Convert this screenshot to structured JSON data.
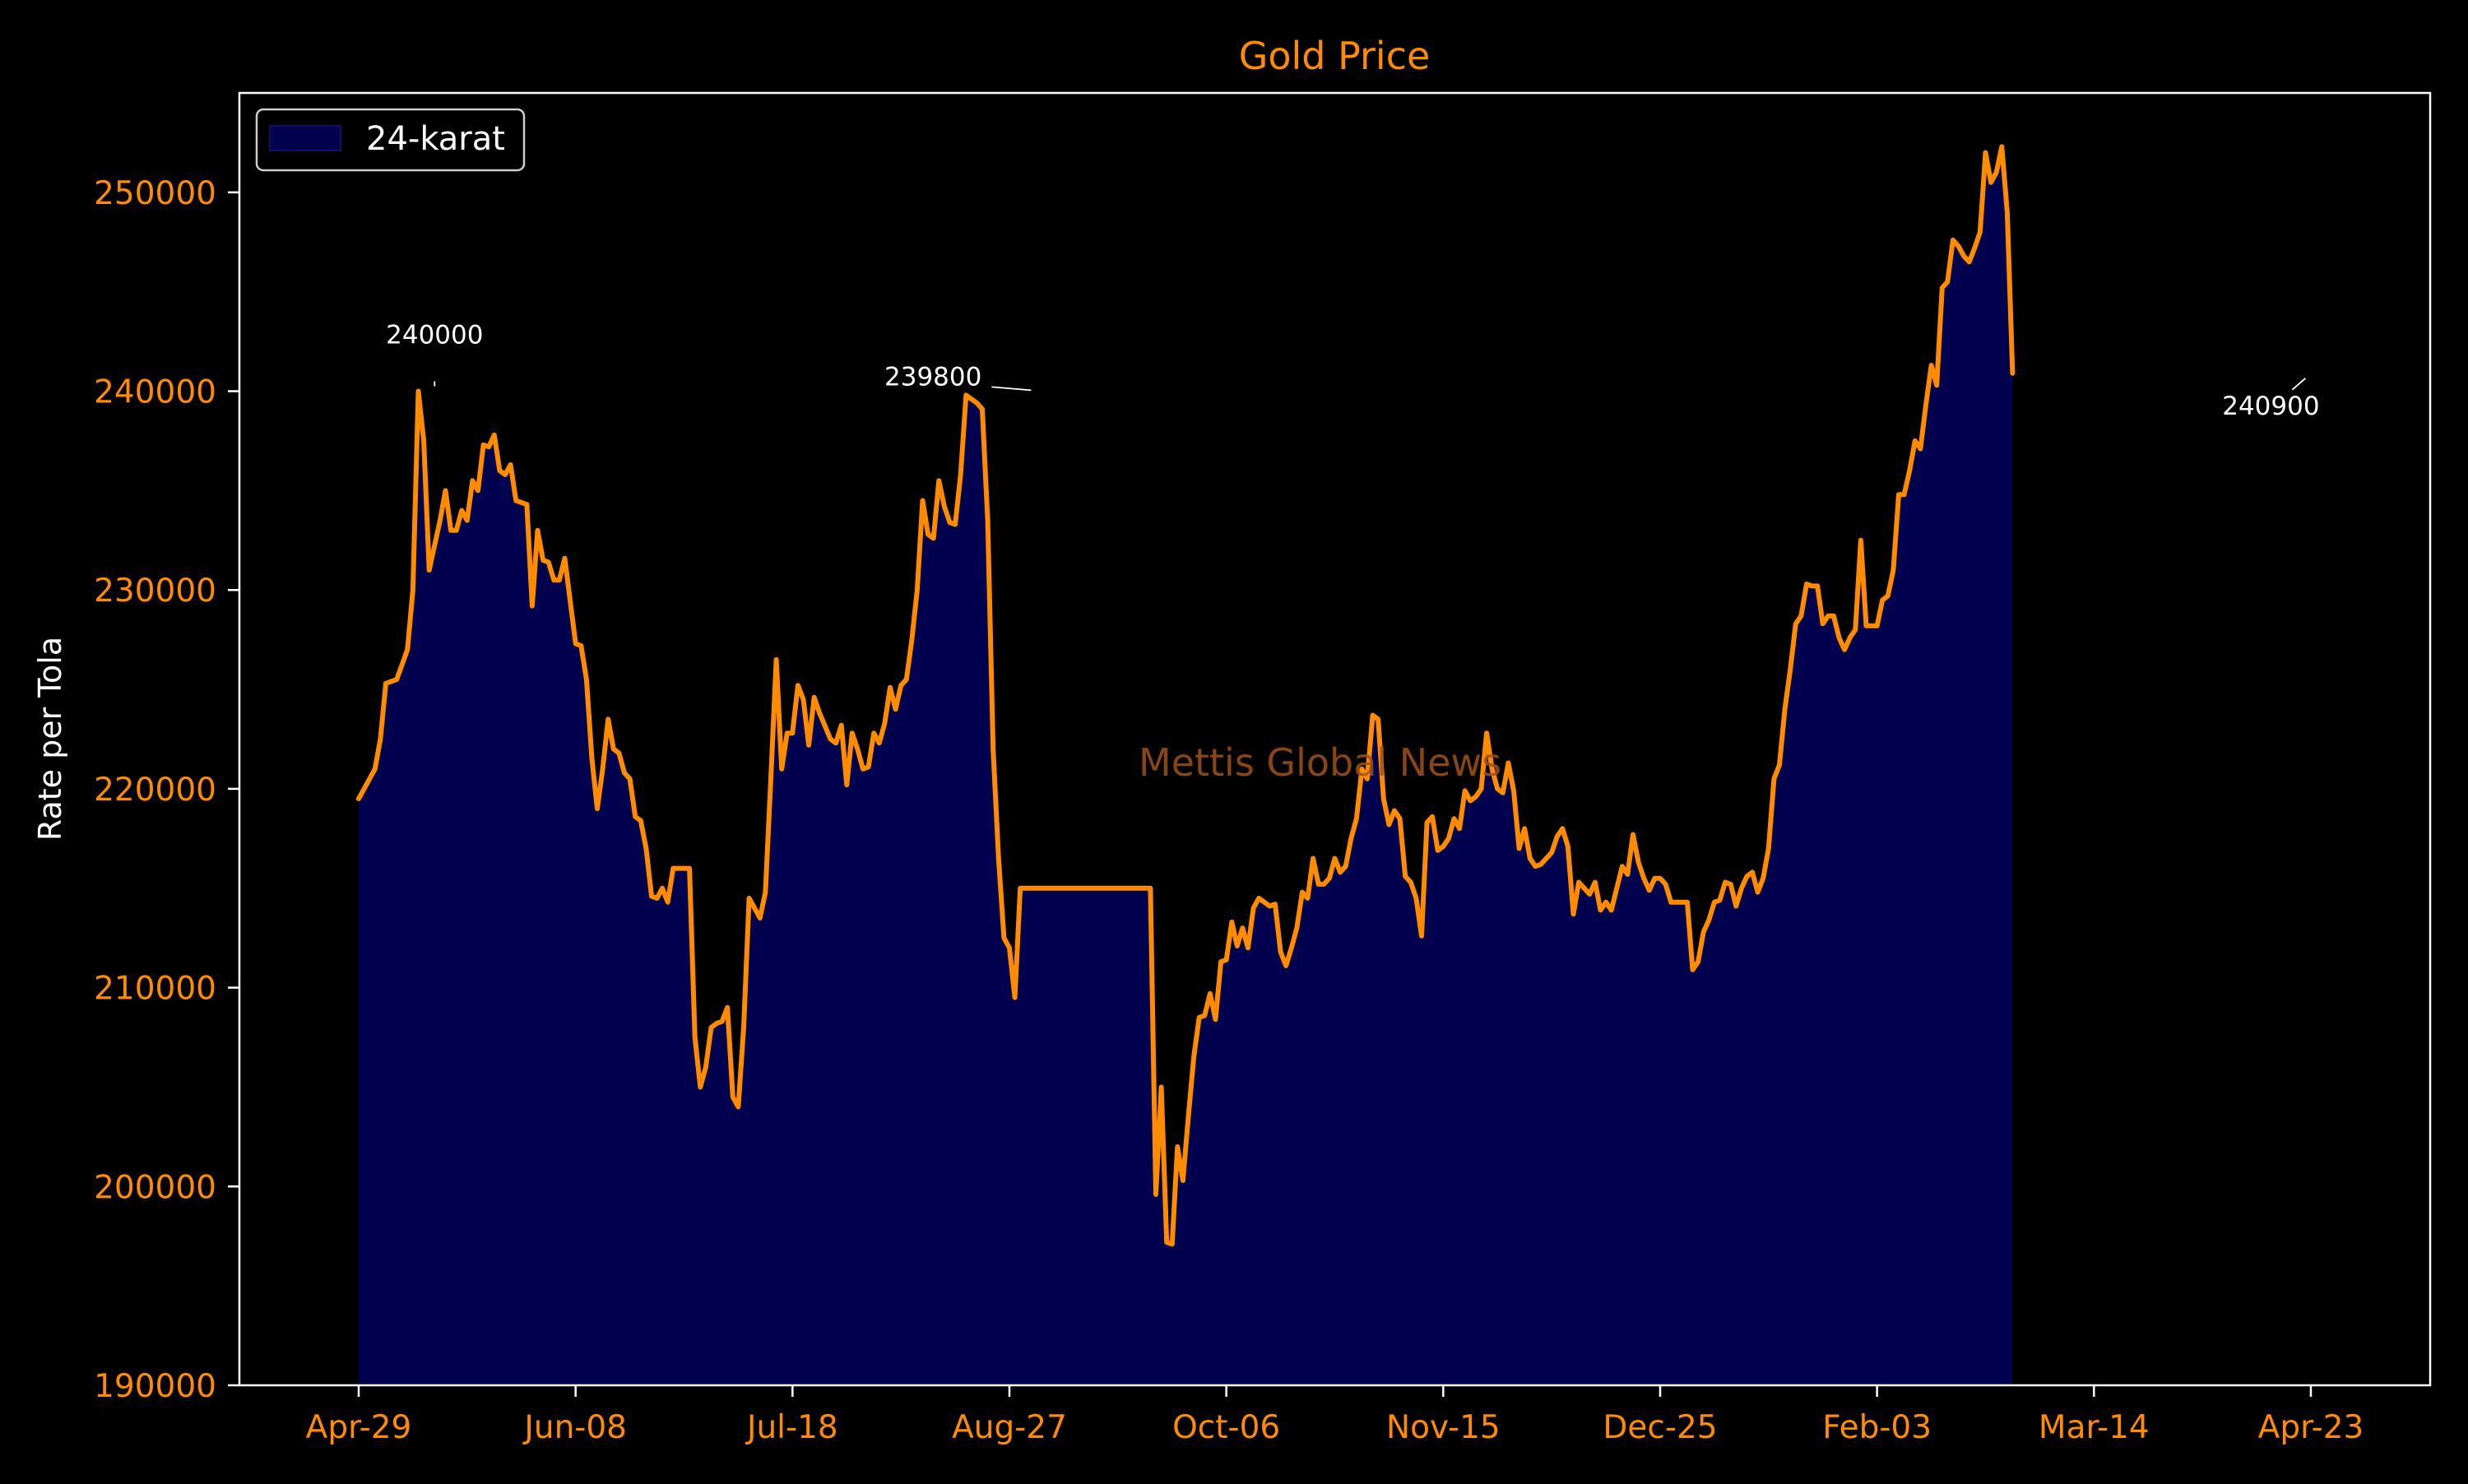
{
  "colors": {
    "background": "#000000",
    "line": "#ff8c00",
    "fill": "#00004f",
    "axis": "#ffffff",
    "tick_text": "#ff8c00",
    "annotation_text": "#ffffff",
    "watermark": "#a0521a"
  },
  "chart_data": {
    "type": "area",
    "title": "Gold Price",
    "xlabel": "",
    "ylabel": "Rate per Tola",
    "legend": {
      "placement": "top-left",
      "entries": [
        "24-karat"
      ]
    },
    "watermark": "Mettis Global News",
    "grid": false,
    "x_ticks": [
      "Apr-29",
      "Jun-08",
      "Jul-18",
      "Aug-27",
      "Oct-06",
      "Nov-15",
      "Dec-25",
      "Feb-03",
      "Mar-14",
      "Apr-23"
    ],
    "y_ticks": [
      "190000",
      "200000",
      "210000",
      "220000",
      "230000",
      "240000",
      "250000"
    ],
    "ylim": [
      190000,
      255000
    ],
    "xlim_days": [
      -22,
      382
    ],
    "annotations": [
      {
        "text": "240000",
        "day": 14,
        "value": 240000
      },
      {
        "text": "239800",
        "day": 124,
        "value": 239800
      },
      {
        "text": "240900",
        "day": 359,
        "value": 240900
      }
    ],
    "series": [
      {
        "name": "24-karat",
        "points": [
          [
            0,
            219500
          ],
          [
            3,
            221000
          ],
          [
            4,
            222500
          ],
          [
            5,
            225300
          ],
          [
            7,
            225500
          ],
          [
            9,
            227000
          ],
          [
            10,
            230000
          ],
          [
            11,
            240000
          ],
          [
            12,
            237500
          ],
          [
            13,
            231000
          ],
          [
            15,
            233500
          ],
          [
            16,
            235000
          ],
          [
            17,
            233000
          ],
          [
            18,
            233000
          ],
          [
            19,
            234000
          ],
          [
            20,
            233500
          ],
          [
            21,
            235500
          ],
          [
            22,
            235000
          ],
          [
            23,
            237300
          ],
          [
            24,
            237200
          ],
          [
            25,
            237800
          ],
          [
            26,
            236000
          ],
          [
            27,
            235800
          ],
          [
            28,
            236300
          ],
          [
            29,
            234500
          ],
          [
            31,
            234300
          ],
          [
            32,
            229200
          ],
          [
            33,
            233000
          ],
          [
            34,
            231500
          ],
          [
            35,
            231400
          ],
          [
            36,
            230500
          ],
          [
            37,
            230500
          ],
          [
            38,
            231600
          ],
          [
            40,
            227300
          ],
          [
            41,
            227200
          ],
          [
            42,
            225500
          ],
          [
            43,
            221500
          ],
          [
            44,
            219000
          ],
          [
            45,
            221000
          ],
          [
            46,
            223500
          ],
          [
            47,
            222000
          ],
          [
            48,
            221800
          ],
          [
            49,
            220800
          ],
          [
            50,
            220500
          ],
          [
            51,
            218600
          ],
          [
            52,
            218400
          ],
          [
            53,
            217000
          ],
          [
            54,
            214600
          ],
          [
            55,
            214500
          ],
          [
            56,
            215000
          ],
          [
            57,
            214300
          ],
          [
            58,
            216000
          ],
          [
            61,
            216000
          ],
          [
            62,
            207500
          ],
          [
            63,
            205000
          ],
          [
            64,
            206000
          ],
          [
            65,
            208000
          ],
          [
            66,
            208200
          ],
          [
            67,
            208300
          ],
          [
            68,
            209000
          ],
          [
            69,
            204500
          ],
          [
            70,
            204000
          ],
          [
            71,
            208000
          ],
          [
            72,
            214500
          ],
          [
            73,
            214000
          ],
          [
            74,
            213500
          ],
          [
            75,
            214800
          ],
          [
            76,
            220500
          ],
          [
            77,
            226500
          ],
          [
            78,
            221000
          ],
          [
            79,
            222800
          ],
          [
            80,
            222800
          ],
          [
            81,
            225200
          ],
          [
            82,
            224500
          ],
          [
            83,
            222200
          ],
          [
            84,
            224600
          ],
          [
            85,
            223800
          ],
          [
            87,
            222500
          ],
          [
            88,
            222300
          ],
          [
            89,
            223200
          ],
          [
            90,
            220200
          ],
          [
            91,
            222800
          ],
          [
            92,
            222000
          ],
          [
            93,
            221000
          ],
          [
            94,
            221100
          ],
          [
            95,
            222800
          ],
          [
            96,
            222300
          ],
          [
            97,
            223300
          ],
          [
            98,
            225100
          ],
          [
            99,
            224000
          ],
          [
            100,
            225200
          ],
          [
            101,
            225500
          ],
          [
            102,
            227500
          ],
          [
            103,
            230000
          ],
          [
            104,
            234500
          ],
          [
            105,
            232800
          ],
          [
            106,
            232600
          ],
          [
            107,
            235500
          ],
          [
            108,
            234200
          ],
          [
            109,
            233400
          ],
          [
            110,
            233300
          ],
          [
            111,
            235800
          ],
          [
            112,
            239800
          ],
          [
            113,
            239600
          ],
          [
            114,
            239400
          ],
          [
            115,
            239100
          ],
          [
            116,
            233500
          ],
          [
            117,
            222000
          ],
          [
            118,
            216500
          ],
          [
            119,
            212500
          ],
          [
            120,
            212000
          ],
          [
            121,
            209500
          ],
          [
            122,
            215000
          ],
          [
            123,
            215000
          ],
          [
            146,
            215000
          ],
          [
            147,
            199600
          ],
          [
            148,
            205000
          ],
          [
            149,
            197200
          ],
          [
            150,
            197100
          ],
          [
            151,
            202000
          ],
          [
            152,
            200300
          ],
          [
            153,
            203500
          ],
          [
            154,
            206500
          ],
          [
            155,
            208500
          ],
          [
            156,
            208600
          ],
          [
            157,
            209700
          ],
          [
            158,
            208400
          ],
          [
            159,
            211300
          ],
          [
            160,
            211400
          ],
          [
            161,
            213300
          ],
          [
            162,
            212100
          ],
          [
            163,
            213000
          ],
          [
            164,
            212000
          ],
          [
            165,
            214000
          ],
          [
            166,
            214500
          ],
          [
            167,
            214300
          ],
          [
            168,
            214100
          ],
          [
            169,
            214200
          ],
          [
            170,
            211800
          ],
          [
            171,
            211100
          ],
          [
            172,
            212000
          ],
          [
            173,
            213000
          ],
          [
            174,
            214800
          ],
          [
            175,
            214500
          ],
          [
            176,
            216500
          ],
          [
            177,
            215200
          ],
          [
            178,
            215200
          ],
          [
            179,
            215500
          ],
          [
            180,
            216500
          ],
          [
            181,
            215800
          ],
          [
            182,
            216100
          ],
          [
            183,
            217500
          ],
          [
            184,
            218500
          ],
          [
            185,
            221000
          ],
          [
            186,
            220500
          ],
          [
            187,
            223700
          ],
          [
            188,
            223500
          ],
          [
            189,
            219500
          ],
          [
            190,
            218200
          ],
          [
            191,
            218900
          ],
          [
            192,
            218500
          ],
          [
            193,
            215600
          ],
          [
            194,
            215300
          ],
          [
            195,
            214500
          ],
          [
            196,
            212600
          ],
          [
            197,
            218300
          ],
          [
            198,
            218600
          ],
          [
            199,
            216900
          ],
          [
            200,
            217100
          ],
          [
            201,
            217500
          ],
          [
            202,
            218500
          ],
          [
            203,
            218000
          ],
          [
            204,
            219900
          ],
          [
            205,
            219400
          ],
          [
            206,
            219600
          ],
          [
            207,
            220000
          ],
          [
            208,
            222800
          ],
          [
            209,
            221000
          ],
          [
            210,
            220000
          ],
          [
            211,
            219800
          ],
          [
            212,
            221300
          ],
          [
            213,
            219900
          ],
          [
            214,
            217000
          ],
          [
            215,
            218000
          ],
          [
            216,
            216500
          ],
          [
            217,
            216100
          ],
          [
            218,
            216200
          ],
          [
            219,
            216500
          ],
          [
            220,
            216800
          ],
          [
            221,
            217600
          ],
          [
            222,
            218000
          ],
          [
            223,
            217100
          ],
          [
            224,
            213700
          ],
          [
            225,
            215300
          ],
          [
            226,
            215000
          ],
          [
            227,
            214700
          ],
          [
            228,
            215300
          ],
          [
            229,
            213900
          ],
          [
            230,
            214300
          ],
          [
            231,
            213900
          ],
          [
            232,
            215000
          ],
          [
            233,
            216100
          ],
          [
            234,
            215700
          ],
          [
            235,
            217700
          ],
          [
            236,
            216300
          ],
          [
            237,
            215500
          ],
          [
            238,
            214900
          ],
          [
            239,
            215500
          ],
          [
            240,
            215500
          ],
          [
            241,
            215200
          ],
          [
            242,
            214300
          ],
          [
            245,
            214300
          ],
          [
            246,
            210900
          ],
          [
            247,
            211300
          ],
          [
            248,
            212800
          ],
          [
            249,
            213400
          ],
          [
            250,
            214300
          ],
          [
            251,
            214400
          ],
          [
            252,
            215300
          ],
          [
            253,
            215200
          ],
          [
            254,
            214100
          ],
          [
            255,
            215000
          ],
          [
            256,
            215600
          ],
          [
            257,
            215800
          ],
          [
            258,
            214800
          ],
          [
            259,
            215500
          ],
          [
            260,
            217000
          ],
          [
            261,
            220500
          ],
          [
            262,
            221200
          ],
          [
            263,
            224000
          ],
          [
            264,
            226000
          ],
          [
            265,
            228300
          ],
          [
            266,
            228700
          ],
          [
            267,
            230300
          ],
          [
            268,
            230200
          ],
          [
            269,
            230200
          ],
          [
            270,
            228300
          ],
          [
            271,
            228700
          ],
          [
            272,
            228700
          ],
          [
            273,
            227600
          ],
          [
            274,
            227000
          ],
          [
            275,
            227600
          ],
          [
            276,
            228000
          ],
          [
            277,
            232500
          ],
          [
            278,
            228200
          ],
          [
            279,
            228200
          ],
          [
            280,
            228200
          ],
          [
            281,
            229500
          ],
          [
            282,
            229700
          ],
          [
            283,
            231000
          ],
          [
            284,
            234800
          ],
          [
            285,
            234800
          ],
          [
            286,
            236000
          ],
          [
            287,
            237500
          ],
          [
            288,
            237100
          ],
          [
            289,
            239300
          ],
          [
            290,
            241300
          ],
          [
            291,
            240300
          ],
          [
            292,
            245200
          ],
          [
            293,
            245500
          ],
          [
            294,
            247600
          ],
          [
            295,
            247300
          ],
          [
            296,
            246800
          ],
          [
            297,
            246500
          ],
          [
            298,
            247200
          ],
          [
            299,
            248000
          ],
          [
            300,
            252000
          ],
          [
            301,
            250500
          ],
          [
            302,
            251000
          ],
          [
            303,
            252300
          ],
          [
            304,
            249000
          ],
          [
            305,
            240900
          ]
        ]
      }
    ]
  }
}
